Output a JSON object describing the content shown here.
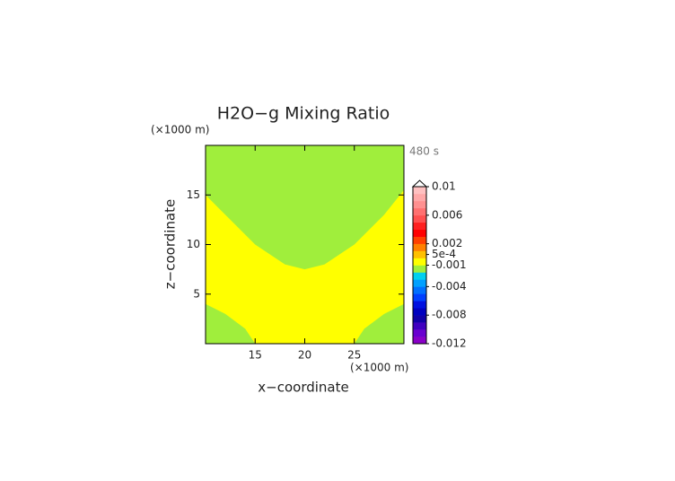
{
  "chart_data": {
    "type": "contour",
    "title": "H2O−g Mixing Ratio",
    "x_label": "x−coordinate",
    "y_label": "z−coordinate",
    "x_unit": "(×1000 m)",
    "y_unit": "(×1000 m)",
    "time_label": "480 s",
    "xlim": [
      10,
      30
    ],
    "ylim": [
      0,
      20
    ],
    "xticks": [
      15,
      20,
      25
    ],
    "yticks": [
      5,
      10,
      15
    ],
    "background_color": "#ffff00",
    "regions": [
      {
        "color": "#a0ee3c",
        "x": [
          10,
          30,
          30,
          28,
          25,
          22,
          20,
          18,
          15,
          12,
          10
        ],
        "y": [
          20,
          20,
          15.5,
          13,
          10,
          8,
          7.5,
          8,
          10,
          13,
          15
        ]
      },
      {
        "color": "#a0ee3c",
        "x": [
          10,
          15,
          14,
          12,
          10
        ],
        "y": [
          0,
          0,
          1.5,
          3,
          4
        ]
      },
      {
        "color": "#a0ee3c",
        "x": [
          25,
          30,
          30,
          28,
          26
        ],
        "y": [
          0,
          0,
          4,
          3,
          1.5
        ]
      }
    ],
    "colorbar": {
      "lim": [
        -0.012,
        0.01
      ],
      "ticks": [
        0.01,
        0.006,
        0.002,
        {
          "value": 0.0005,
          "label": "5e-4"
        },
        -0.001,
        -0.004,
        -0.008,
        -0.012
      ],
      "colors": [
        "#8a00c8",
        "#6a00d0",
        "#4000c0",
        "#1000a8",
        "#0000c0",
        "#0010e0",
        "#0040ff",
        "#0070ff",
        "#00a0ff",
        "#00d0f0",
        "#a0ee3c",
        "#ffff00",
        "#ffc000",
        "#ff8000",
        "#ff4000",
        "#ff0000",
        "#ff2020",
        "#ff5050",
        "#ff7070",
        "#ff9090",
        "#ffa8a8",
        "#ffc0c0"
      ]
    }
  }
}
